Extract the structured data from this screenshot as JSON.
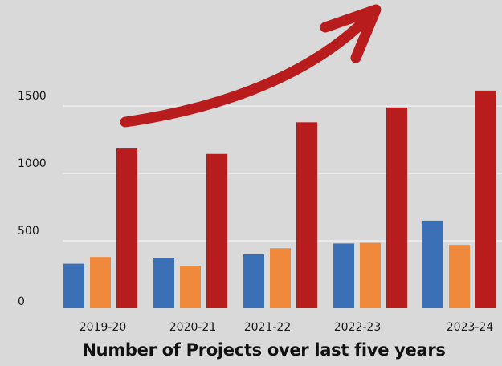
{
  "chart_data": {
    "type": "bar",
    "title": "Number of Projects over last five years",
    "xlabel": "",
    "ylabel": "",
    "categories": [
      "2019-20",
      "2020-21",
      "2021-22",
      "2022-23",
      "2023-24"
    ],
    "series": [
      {
        "values": [
          330,
          375,
          400,
          480,
          650
        ],
        "color": "#3b6fb6"
      },
      {
        "values": [
          380,
          315,
          445,
          485,
          470
        ],
        "color": "#ef8a3c"
      },
      {
        "values": [
          1185,
          1145,
          1380,
          1490,
          1615
        ],
        "color": "#b91c1c"
      }
    ],
    "yticks": [
      0,
      500,
      1000,
      1500
    ],
    "ylim": [
      0,
      1650
    ],
    "grid": true,
    "gridline_color": "#efefef",
    "legend": "none",
    "annotation": {
      "kind": "upward-trend-arrow",
      "color": "#b91c1c"
    }
  }
}
